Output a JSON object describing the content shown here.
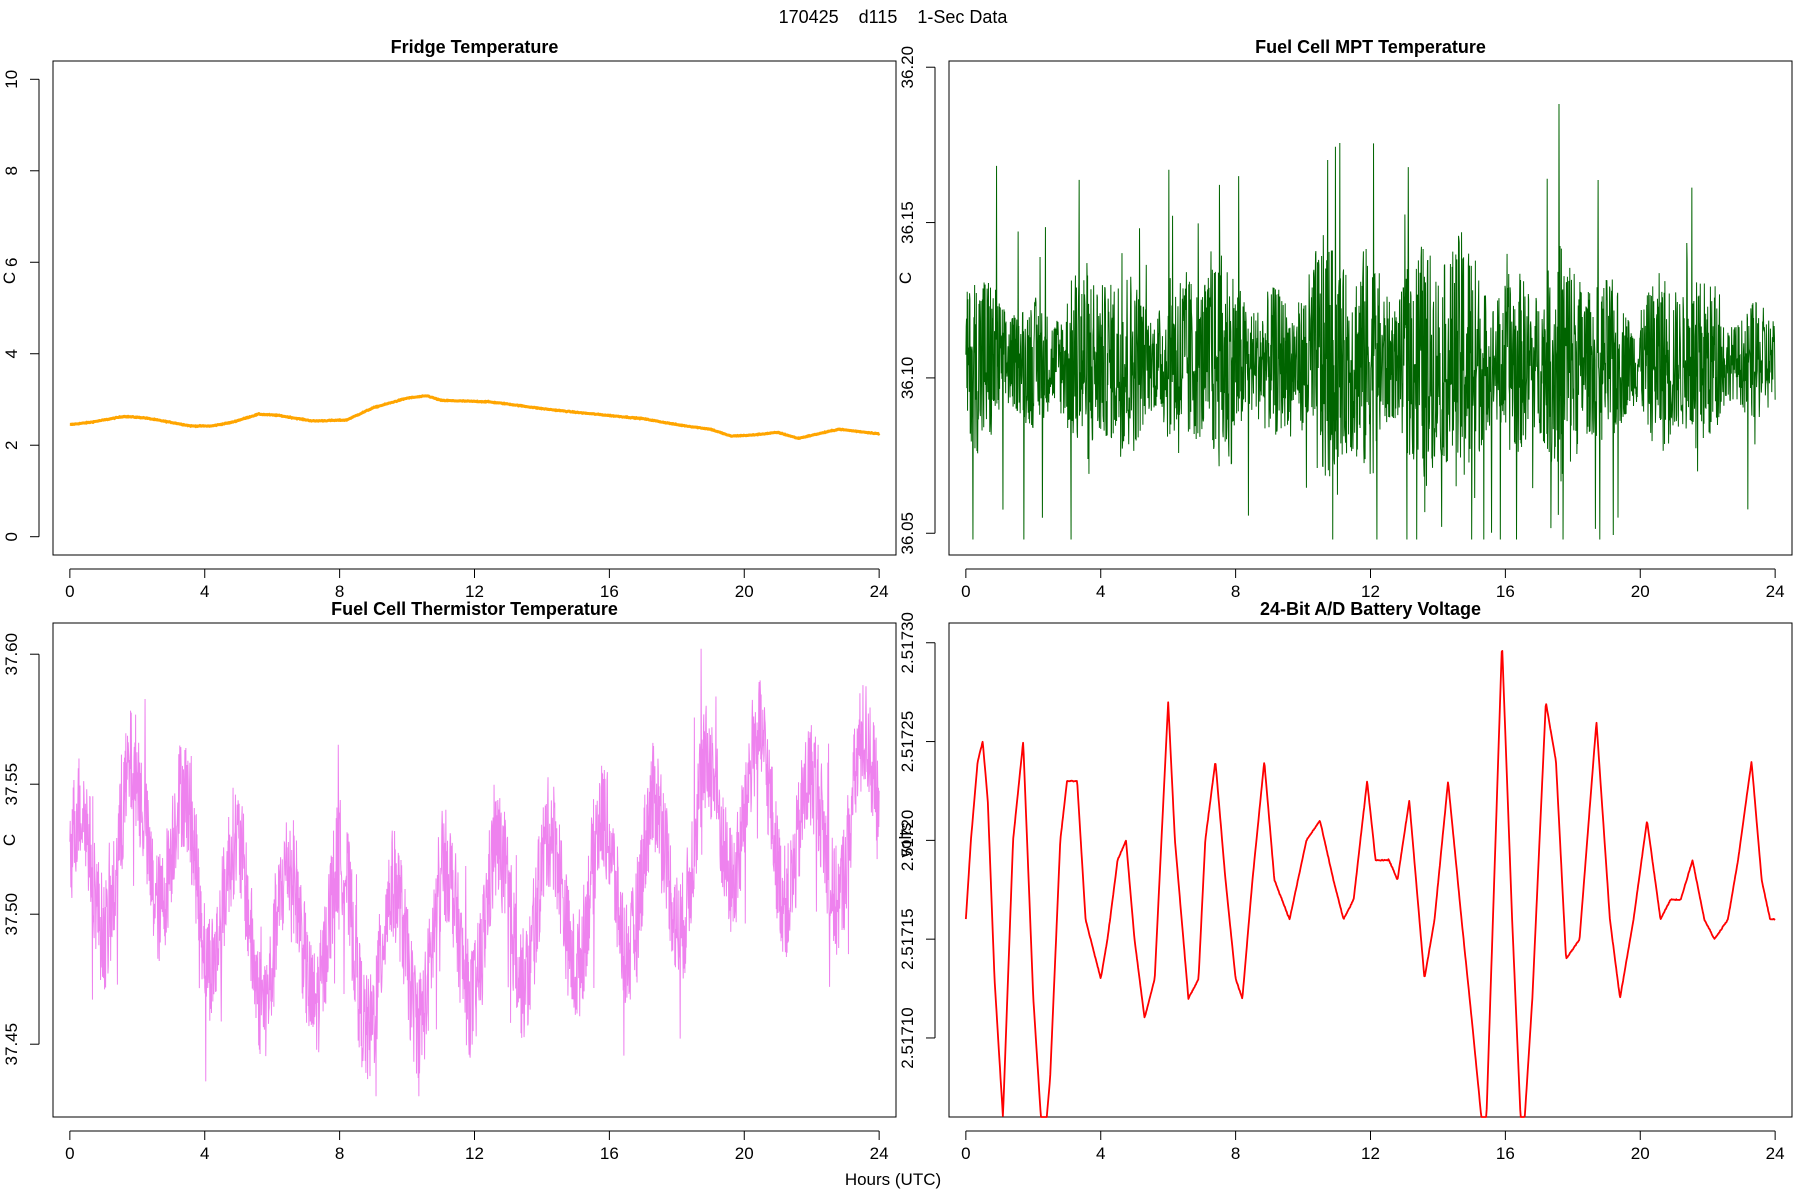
{
  "figure": {
    "title": "170425    d115    1-Sec Data",
    "xlabel": "Hours (UTC)"
  },
  "chart_data": [
    {
      "type": "line",
      "title": "Fridge Temperature",
      "xlabel": "Hours (UTC)",
      "ylabel": "C",
      "color": "#ffa500",
      "xlim": [
        -0.5,
        24.5
      ],
      "ylim": [
        -0.4,
        10.4
      ],
      "xticks": [
        0,
        4,
        8,
        12,
        16,
        20,
        24
      ],
      "yticks": [
        0,
        2,
        4,
        6,
        8,
        10
      ],
      "yticklabels": [
        "0",
        "2",
        "4",
        "6",
        "8",
        "10"
      ],
      "noise": 0.01,
      "points": [
        [
          0,
          2.45
        ],
        [
          0.6,
          2.5
        ],
        [
          1,
          2.55
        ],
        [
          1.6,
          2.63
        ],
        [
          2.2,
          2.6
        ],
        [
          3,
          2.5
        ],
        [
          3.6,
          2.42
        ],
        [
          4.2,
          2.42
        ],
        [
          4.8,
          2.5
        ],
        [
          5.6,
          2.68
        ],
        [
          6.2,
          2.65
        ],
        [
          7.2,
          2.53
        ],
        [
          8.2,
          2.55
        ],
        [
          9,
          2.82
        ],
        [
          10,
          3.03
        ],
        [
          10.6,
          3.08
        ],
        [
          11,
          2.98
        ],
        [
          12.4,
          2.95
        ],
        [
          13,
          2.9
        ],
        [
          14,
          2.8
        ],
        [
          15,
          2.72
        ],
        [
          16,
          2.65
        ],
        [
          17,
          2.58
        ],
        [
          18,
          2.45
        ],
        [
          19,
          2.35
        ],
        [
          19.6,
          2.2
        ],
        [
          20.2,
          2.22
        ],
        [
          21,
          2.28
        ],
        [
          21.6,
          2.15
        ],
        [
          22.2,
          2.25
        ],
        [
          22.8,
          2.35
        ],
        [
          23.4,
          2.3
        ],
        [
          24,
          2.25
        ]
      ]
    },
    {
      "type": "line",
      "title": "Fuel Cell MPT Temperature",
      "xlabel": "Hours (UTC)",
      "ylabel": "C",
      "color": "#006400",
      "xlim": [
        -0.5,
        24.5
      ],
      "ylim": [
        36.043,
        36.202
      ],
      "xticks": [
        0,
        4,
        8,
        12,
        16,
        20,
        24
      ],
      "yticks": [
        36.05,
        36.1,
        36.15,
        36.2
      ],
      "yticklabels": [
        "36.05",
        "36.10",
        "36.15",
        "36.20"
      ],
      "band_center": 36.105,
      "band_half": [
        [
          0,
          0.028
        ],
        [
          1.5,
          0.025
        ],
        [
          3,
          0.03
        ],
        [
          6,
          0.035
        ],
        [
          9,
          0.03
        ],
        [
          12,
          0.042
        ],
        [
          16,
          0.038
        ],
        [
          20,
          0.03
        ],
        [
          24,
          0.022
        ]
      ],
      "envelope_min": 36.048,
      "envelope_max": 36.195
    },
    {
      "type": "line",
      "title": "Fuel Cell Thermistor Temperature",
      "xlabel": "Hours (UTC)",
      "ylabel": "C",
      "color": "#ee82ee",
      "xlim": [
        -0.5,
        24.5
      ],
      "ylim": [
        37.422,
        37.612
      ],
      "xticks": [
        0,
        4,
        8,
        12,
        16,
        20,
        24
      ],
      "yticks": [
        37.45,
        37.5,
        37.55,
        37.6
      ],
      "yticklabels": [
        "37.45",
        "37.50",
        "37.55",
        "37.60"
      ],
      "center": [
        [
          0,
          37.51
        ],
        [
          1,
          37.52
        ],
        [
          2.3,
          37.535
        ],
        [
          4,
          37.51
        ],
        [
          6,
          37.49
        ],
        [
          8,
          37.495
        ],
        [
          9,
          37.48
        ],
        [
          12,
          37.495
        ],
        [
          14.5,
          37.505
        ],
        [
          16,
          37.51
        ],
        [
          18,
          37.52
        ],
        [
          20,
          37.545
        ],
        [
          22,
          37.525
        ],
        [
          24,
          37.545
        ]
      ],
      "swing": 0.028,
      "spread": 0.022,
      "envelope_min": 37.43,
      "envelope_max": 37.605
    },
    {
      "type": "line",
      "title": "24-Bit A/D Battery Voltage",
      "xlabel": "Hours (UTC)",
      "ylabel": "volts",
      "color": "#ff0000",
      "xlim": [
        -0.5,
        24.5
      ],
      "ylim": [
        2.51706,
        2.51731
      ],
      "xticks": [
        0,
        4,
        8,
        12,
        16,
        20,
        24
      ],
      "yticks": [
        2.5171,
        2.51715,
        2.5172,
        2.51725,
        2.5173
      ],
      "yticklabels": [
        "2.51710",
        "2.51715",
        "2.51720",
        "2.51725",
        "2.51730"
      ],
      "noise": 3e-07,
      "points": [
        [
          0,
          2.51716
        ],
        [
          0.15,
          2.5172
        ],
        [
          0.35,
          2.51724
        ],
        [
          0.5,
          2.51725
        ],
        [
          0.65,
          2.51722
        ],
        [
          0.85,
          2.51713
        ],
        [
          1.1,
          2.51706
        ],
        [
          1.4,
          2.5172
        ],
        [
          1.7,
          2.51725
        ],
        [
          2.0,
          2.51712
        ],
        [
          2.3,
          2.51704
        ],
        [
          2.5,
          2.51708
        ],
        [
          2.8,
          2.5172
        ],
        [
          3.0,
          2.51723
        ],
        [
          3.3,
          2.51723
        ],
        [
          3.55,
          2.51716
        ],
        [
          4.0,
          2.51713
        ],
        [
          4.2,
          2.51715
        ],
        [
          4.5,
          2.51719
        ],
        [
          4.75,
          2.5172
        ],
        [
          5.0,
          2.51715
        ],
        [
          5.3,
          2.51711
        ],
        [
          5.6,
          2.51713
        ],
        [
          6.0,
          2.51727
        ],
        [
          6.2,
          2.5172
        ],
        [
          6.6,
          2.51712
        ],
        [
          6.9,
          2.51713
        ],
        [
          7.1,
          2.5172
        ],
        [
          7.4,
          2.51724
        ],
        [
          7.7,
          2.51718
        ],
        [
          8.0,
          2.51713
        ],
        [
          8.2,
          2.51712
        ],
        [
          8.5,
          2.51718
        ],
        [
          8.85,
          2.51724
        ],
        [
          9.15,
          2.51718
        ],
        [
          9.6,
          2.51716
        ],
        [
          10.1,
          2.5172
        ],
        [
          10.5,
          2.51721
        ],
        [
          10.9,
          2.51718
        ],
        [
          11.2,
          2.51716
        ],
        [
          11.5,
          2.51717
        ],
        [
          11.9,
          2.51723
        ],
        [
          12.15,
          2.51719
        ],
        [
          12.55,
          2.51719
        ],
        [
          12.8,
          2.51718
        ],
        [
          13.15,
          2.51722
        ],
        [
          13.6,
          2.51713
        ],
        [
          13.9,
          2.51716
        ],
        [
          14.3,
          2.51723
        ],
        [
          14.7,
          2.51716
        ],
        [
          15.0,
          2.51711
        ],
        [
          15.4,
          2.51704
        ],
        [
          15.9,
          2.5173
        ],
        [
          16.2,
          2.51716
        ],
        [
          16.5,
          2.51704
        ],
        [
          16.8,
          2.51712
        ],
        [
          17.2,
          2.51727
        ],
        [
          17.5,
          2.51724
        ],
        [
          17.8,
          2.51714
        ],
        [
          18.2,
          2.51715
        ],
        [
          18.7,
          2.51726
        ],
        [
          19.1,
          2.51716
        ],
        [
          19.4,
          2.51712
        ],
        [
          19.8,
          2.51716
        ],
        [
          20.2,
          2.51721
        ],
        [
          20.6,
          2.51716
        ],
        [
          20.9,
          2.51717
        ],
        [
          21.2,
          2.51717
        ],
        [
          21.55,
          2.51719
        ],
        [
          21.9,
          2.51716
        ],
        [
          22.2,
          2.51715
        ],
        [
          22.6,
          2.51716
        ],
        [
          22.9,
          2.51719
        ],
        [
          23.3,
          2.51724
        ],
        [
          23.6,
          2.51718
        ],
        [
          23.85,
          2.51716
        ],
        [
          24.0,
          2.51716
        ]
      ]
    }
  ]
}
